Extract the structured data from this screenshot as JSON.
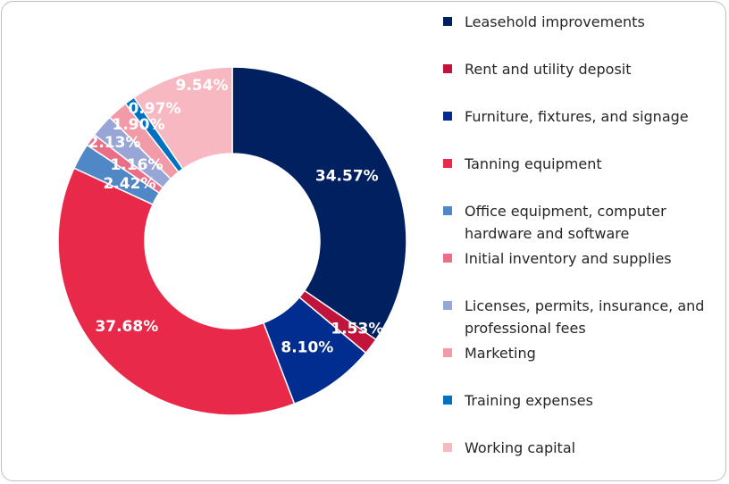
{
  "chart_data": {
    "type": "pie",
    "donut": true,
    "categories": [
      "Leasehold improvements",
      "Rent and utility deposit",
      "Furniture, fixtures, and signage",
      "Tanning equipment",
      "Office equipment, computer hardware and software",
      "Initial inventory and supplies",
      "Licenses, permits, insurance, and professional fees",
      "Marketing",
      "Training expenses",
      "Working capital"
    ],
    "values": [
      34.57,
      1.53,
      8.1,
      37.68,
      2.42,
      1.16,
      2.13,
      1.9,
      0.97,
      9.54
    ],
    "labels": [
      "34.57%",
      "1.53%",
      "8.10%",
      "37.68%",
      "2.42%",
      "1.16%",
      "2.13%",
      "1.90%",
      "0.97%",
      "9.54%"
    ],
    "colors": [
      "#002060",
      "#C0143C",
      "#002D8F",
      "#E8294A",
      "#4F87C7",
      "#EB6E87",
      "#97A6D6",
      "#F19AA8",
      "#0070C0",
      "#F7B8C1"
    ],
    "legend_position": "right"
  }
}
